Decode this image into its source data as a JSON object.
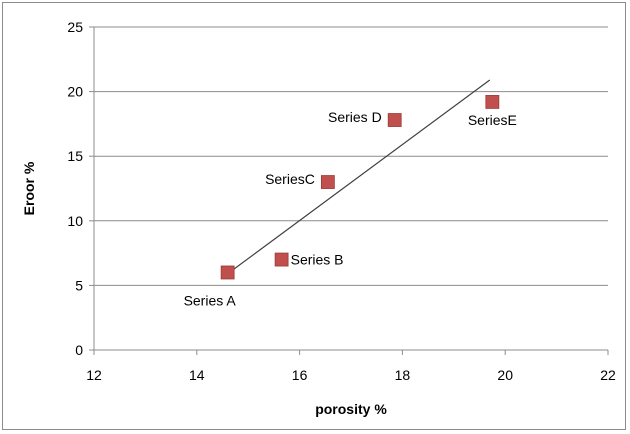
{
  "chart_data": {
    "type": "scatter",
    "title": "",
    "xlabel": "porosity %",
    "ylabel": "Eroor %",
    "xlim": [
      12,
      22
    ],
    "ylim": [
      0,
      25
    ],
    "xticks": [
      12,
      14,
      16,
      18,
      20,
      22
    ],
    "yticks": [
      0,
      5,
      10,
      15,
      20,
      25
    ],
    "grid": "horizontal",
    "legend": "none",
    "marker_color": "#c0504d",
    "points": [
      {
        "label": "Series A",
        "x": 14.6,
        "y": 6.0,
        "label_pos": "below-left"
      },
      {
        "label": "Series B",
        "x": 15.65,
        "y": 7.0,
        "label_pos": "right"
      },
      {
        "label": "SeriesC",
        "x": 16.55,
        "y": 13.0,
        "label_pos": "left"
      },
      {
        "label": "Series D",
        "x": 17.85,
        "y": 17.8,
        "label_pos": "left"
      },
      {
        "label": "SeriesE",
        "x": 19.75,
        "y": 19.2,
        "label_pos": "below"
      }
    ],
    "trendline": {
      "type": "linear",
      "color": "#404040",
      "x_start": 14.6,
      "y_start": 5.9,
      "x_end": 19.7,
      "y_end": 20.9
    }
  }
}
